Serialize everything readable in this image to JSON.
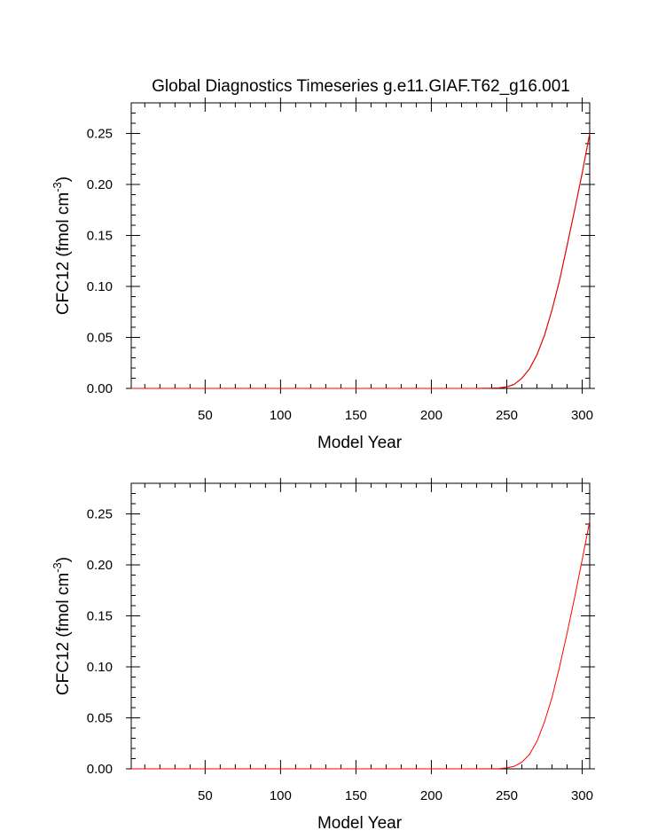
{
  "figure": {
    "title": "Global Diagnostics Timeseries g.e11.GIAF.T62_g16.001"
  },
  "chart_data": [
    {
      "type": "line",
      "title": "Global Diagnostics Timeseries g.e11.GIAF.T62_g16.001",
      "xlabel": "Model Year",
      "ylabel_main": "CFC12 (fmol cm",
      "ylabel_sup": "-3",
      "ylabel_close": ")",
      "xlim": [
        1,
        305
      ],
      "ylim": [
        0,
        0.28
      ],
      "xticks": [
        50,
        100,
        150,
        200,
        250,
        300
      ],
      "yticks": [
        0.0,
        0.05,
        0.1,
        0.15,
        0.2,
        0.25
      ],
      "ytick_labels": [
        "0.00",
        "0.05",
        "0.10",
        "0.15",
        "0.20",
        "0.25"
      ],
      "grid": false,
      "series": [
        {
          "color": "#000000",
          "x": [
            1,
            100,
            200,
            230,
            240,
            245,
            250,
            255,
            260,
            265,
            270,
            275,
            280,
            285,
            290,
            295,
            300,
            305
          ],
          "y": [
            0.0,
            0.0,
            0.0,
            0.0,
            0.0002,
            0.0005,
            0.0015,
            0.004,
            0.01,
            0.019,
            0.033,
            0.052,
            0.077,
            0.106,
            0.14,
            0.175,
            0.211,
            0.25
          ]
        },
        {
          "color": "#ff0000",
          "x": [
            1,
            100,
            200,
            230,
            240,
            245,
            250,
            255,
            260,
            265,
            270,
            275,
            280,
            285,
            290,
            295,
            300,
            305
          ],
          "y": [
            0.0,
            0.0,
            0.0,
            0.0,
            0.0002,
            0.0005,
            0.0015,
            0.004,
            0.01,
            0.019,
            0.033,
            0.052,
            0.077,
            0.106,
            0.14,
            0.175,
            0.211,
            0.25
          ]
        }
      ]
    },
    {
      "type": "line",
      "xlabel": "Model Year",
      "ylabel_main": "CFC12 (fmol cm",
      "ylabel_sup": "-3",
      "ylabel_close": ")",
      "xlim": [
        1,
        305
      ],
      "ylim": [
        0,
        0.28
      ],
      "xticks": [
        50,
        100,
        150,
        200,
        250,
        300
      ],
      "yticks": [
        0.0,
        0.05,
        0.1,
        0.15,
        0.2,
        0.25
      ],
      "ytick_labels": [
        "0.00",
        "0.05",
        "0.10",
        "0.15",
        "0.20",
        "0.25"
      ],
      "grid": false,
      "series": [
        {
          "color": "#ff0000",
          "x": [
            1,
            100,
            200,
            230,
            240,
            245,
            250,
            255,
            260,
            265,
            270,
            275,
            280,
            285,
            290,
            295,
            300,
            305
          ],
          "y": [
            0.0,
            0.0,
            0.0,
            0.0,
            0.0001,
            0.0003,
            0.001,
            0.0025,
            0.0065,
            0.014,
            0.027,
            0.046,
            0.07,
            0.1,
            0.133,
            0.168,
            0.205,
            0.243
          ]
        }
      ]
    }
  ]
}
